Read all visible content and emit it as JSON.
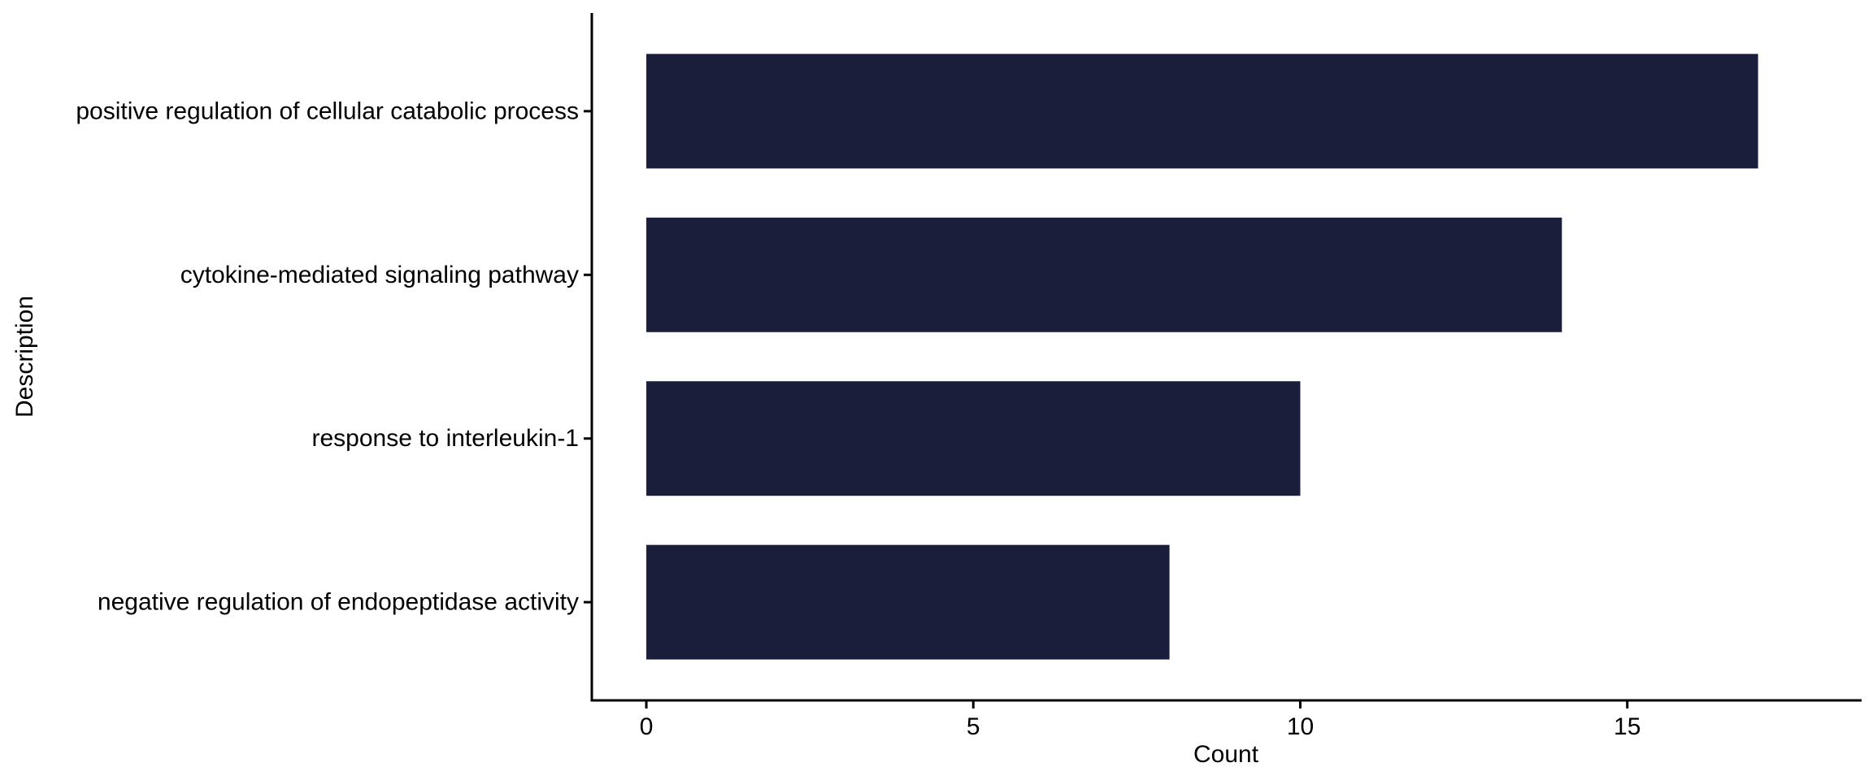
{
  "chart_data": {
    "type": "bar",
    "orientation": "horizontal",
    "categories": [
      "positive regulation of cellular catabolic process",
      "cytokine-mediated signaling pathway",
      "response to interleukin-1",
      "negative regulation of endopeptidase activity"
    ],
    "values": [
      17,
      14,
      10,
      8
    ],
    "xlabel": "Count",
    "ylabel": "Description",
    "x_ticks": [
      "0",
      "5",
      "10",
      "15"
    ],
    "xlim": [
      -0.8333,
      18.5833
    ],
    "grid": false,
    "bar_color": "#1b1e3a"
  }
}
